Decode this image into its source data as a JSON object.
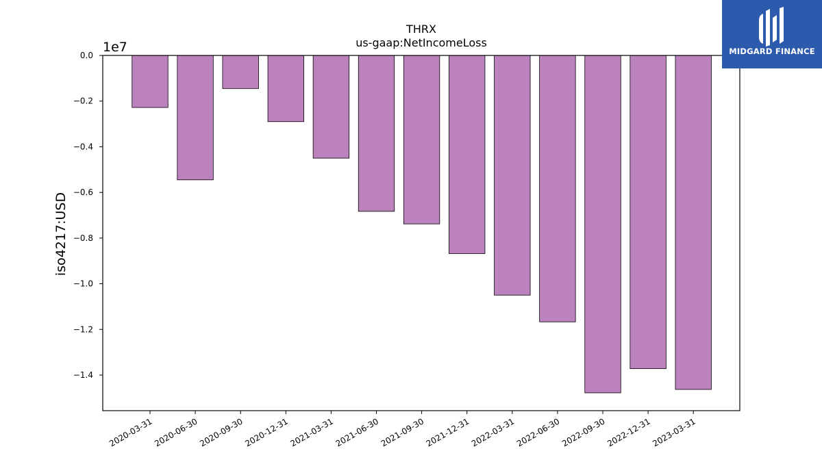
{
  "chart_data": {
    "type": "bar",
    "title": "THRX",
    "subtitle": "us-gaap:NetIncomeLoss",
    "ylabel": "iso4217:USD",
    "xlabel": "",
    "scale_label": "1e7",
    "categories": [
      "2020-03-31",
      "2020-06-30",
      "2020-09-30",
      "2020-12-31",
      "2021-03-31",
      "2021-06-30",
      "2021-09-30",
      "2021-12-31",
      "2022-03-31",
      "2022-06-30",
      "2022-09-30",
      "2022-12-31",
      "2023-03-31"
    ],
    "values": [
      -2280000,
      -5450000,
      -1450000,
      -2900000,
      -4500000,
      -6830000,
      -7380000,
      -8680000,
      -10500000,
      -11670000,
      -14780000,
      -13720000,
      -14630000
    ],
    "ylim": [
      -15560000,
      0
    ],
    "yticks": [
      0.0,
      -0.2,
      -0.4,
      -0.6,
      -0.8,
      -1.0,
      -1.2,
      -1.4
    ],
    "ytick_labels": [
      "0.0",
      "−0.2",
      "−0.4",
      "−0.6",
      "−0.8",
      "−1.0",
      "−1.2",
      "−1.4"
    ],
    "bar_color": "#bc82bd",
    "edge_color": "#000000",
    "grid": false
  },
  "logo": {
    "text": "MIDGARD FINANCE",
    "background": "#2c5aad"
  }
}
